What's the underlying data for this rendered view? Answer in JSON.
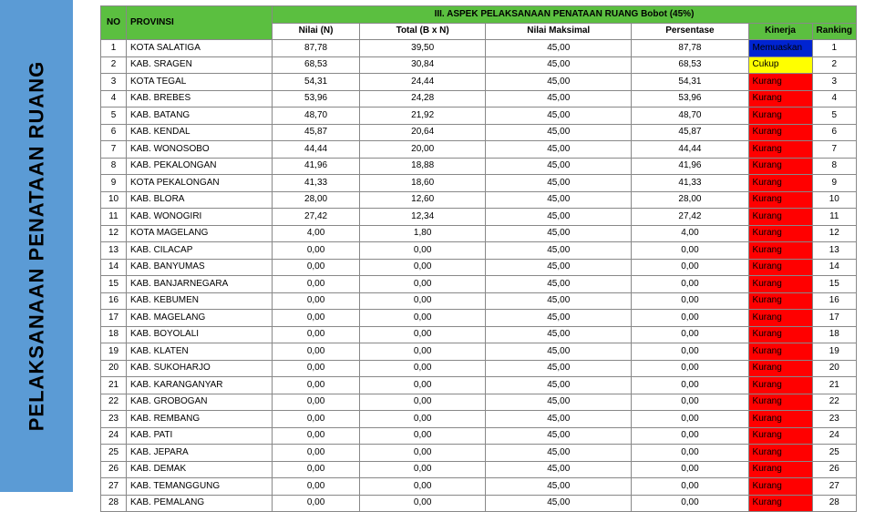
{
  "sidebar": {
    "title": "PELAKSANAAN PENATAAN RUANG"
  },
  "table": {
    "header": {
      "no": "NO",
      "provinsi": "PROVINSI",
      "group": "III. ASPEK PELAKSANAAN PENATAAN RUANG Bobot (45%)",
      "nilai": "Nilai (N)",
      "total": "Total (B x N)",
      "maks": "Nilai Maksimal",
      "persen": "Persentase",
      "kinerja": "Kinerja",
      "ranking": "Ranking"
    },
    "rows": [
      {
        "no": "1",
        "prov": "KOTA SALATIGA",
        "nilai": "87,78",
        "total": "39,50",
        "maks": "45,00",
        "persen": "87,78",
        "kin": "Memuaskan",
        "kclass": "kin-blue",
        "rank": "1"
      },
      {
        "no": "2",
        "prov": "KAB. SRAGEN",
        "nilai": "68,53",
        "total": "30,84",
        "maks": "45,00",
        "persen": "68,53",
        "kin": "Cukup",
        "kclass": "kin-yellow",
        "rank": "2"
      },
      {
        "no": "3",
        "prov": "KOTA TEGAL",
        "nilai": "54,31",
        "total": "24,44",
        "maks": "45,00",
        "persen": "54,31",
        "kin": "Kurang",
        "kclass": "kin-red",
        "rank": "3"
      },
      {
        "no": "4",
        "prov": "KAB. BREBES",
        "nilai": "53,96",
        "total": "24,28",
        "maks": "45,00",
        "persen": "53,96",
        "kin": "Kurang",
        "kclass": "kin-red",
        "rank": "4"
      },
      {
        "no": "5",
        "prov": "KAB. BATANG",
        "nilai": "48,70",
        "total": "21,92",
        "maks": "45,00",
        "persen": "48,70",
        "kin": "Kurang",
        "kclass": "kin-red",
        "rank": "5"
      },
      {
        "no": "6",
        "prov": "KAB. KENDAL",
        "nilai": "45,87",
        "total": "20,64",
        "maks": "45,00",
        "persen": "45,87",
        "kin": "Kurang",
        "kclass": "kin-red",
        "rank": "6"
      },
      {
        "no": "7",
        "prov": "KAB. WONOSOBO",
        "nilai": "44,44",
        "total": "20,00",
        "maks": "45,00",
        "persen": "44,44",
        "kin": "Kurang",
        "kclass": "kin-red",
        "rank": "7"
      },
      {
        "no": "8",
        "prov": "KAB. PEKALONGAN",
        "nilai": "41,96",
        "total": "18,88",
        "maks": "45,00",
        "persen": "41,96",
        "kin": "Kurang",
        "kclass": "kin-red",
        "rank": "8"
      },
      {
        "no": "9",
        "prov": "KOTA PEKALONGAN",
        "nilai": "41,33",
        "total": "18,60",
        "maks": "45,00",
        "persen": "41,33",
        "kin": "Kurang",
        "kclass": "kin-red",
        "rank": "9"
      },
      {
        "no": "10",
        "prov": "KAB. BLORA",
        "nilai": "28,00",
        "total": "12,60",
        "maks": "45,00",
        "persen": "28,00",
        "kin": "Kurang",
        "kclass": "kin-red",
        "rank": "10"
      },
      {
        "no": "11",
        "prov": "KAB. WONOGIRI",
        "nilai": "27,42",
        "total": "12,34",
        "maks": "45,00",
        "persen": "27,42",
        "kin": "Kurang",
        "kclass": "kin-red",
        "rank": "11"
      },
      {
        "no": "12",
        "prov": "KOTA MAGELANG",
        "nilai": "4,00",
        "total": "1,80",
        "maks": "45,00",
        "persen": "4,00",
        "kin": "Kurang",
        "kclass": "kin-red",
        "rank": "12"
      },
      {
        "no": "13",
        "prov": "KAB. CILACAP",
        "nilai": "0,00",
        "total": "0,00",
        "maks": "45,00",
        "persen": "0,00",
        "kin": "Kurang",
        "kclass": "kin-red",
        "rank": "13"
      },
      {
        "no": "14",
        "prov": "KAB. BANYUMAS",
        "nilai": "0,00",
        "total": "0,00",
        "maks": "45,00",
        "persen": "0,00",
        "kin": "Kurang",
        "kclass": "kin-red",
        "rank": "14"
      },
      {
        "no": "15",
        "prov": "KAB. BANJARNEGARA",
        "nilai": "0,00",
        "total": "0,00",
        "maks": "45,00",
        "persen": "0,00",
        "kin": "Kurang",
        "kclass": "kin-red",
        "rank": "15"
      },
      {
        "no": "16",
        "prov": "KAB. KEBUMEN",
        "nilai": "0,00",
        "total": "0,00",
        "maks": "45,00",
        "persen": "0,00",
        "kin": "Kurang",
        "kclass": "kin-red",
        "rank": "16"
      },
      {
        "no": "17",
        "prov": "KAB. MAGELANG",
        "nilai": "0,00",
        "total": "0,00",
        "maks": "45,00",
        "persen": "0,00",
        "kin": "Kurang",
        "kclass": "kin-red",
        "rank": "17"
      },
      {
        "no": "18",
        "prov": "KAB. BOYOLALI",
        "nilai": "0,00",
        "total": "0,00",
        "maks": "45,00",
        "persen": "0,00",
        "kin": "Kurang",
        "kclass": "kin-red",
        "rank": "18"
      },
      {
        "no": "19",
        "prov": "KAB. KLATEN",
        "nilai": "0,00",
        "total": "0,00",
        "maks": "45,00",
        "persen": "0,00",
        "kin": "Kurang",
        "kclass": "kin-red",
        "rank": "19"
      },
      {
        "no": "20",
        "prov": "KAB. SUKOHARJO",
        "nilai": "0,00",
        "total": "0,00",
        "maks": "45,00",
        "persen": "0,00",
        "kin": "Kurang",
        "kclass": "kin-red",
        "rank": "20"
      },
      {
        "no": "21",
        "prov": "KAB. KARANGANYAR",
        "nilai": "0,00",
        "total": "0,00",
        "maks": "45,00",
        "persen": "0,00",
        "kin": "Kurang",
        "kclass": "kin-red",
        "rank": "21"
      },
      {
        "no": "22",
        "prov": "KAB. GROBOGAN",
        "nilai": "0,00",
        "total": "0,00",
        "maks": "45,00",
        "persen": "0,00",
        "kin": "Kurang",
        "kclass": "kin-red",
        "rank": "22"
      },
      {
        "no": "23",
        "prov": "KAB. REMBANG",
        "nilai": "0,00",
        "total": "0,00",
        "maks": "45,00",
        "persen": "0,00",
        "kin": "Kurang",
        "kclass": "kin-red",
        "rank": "23"
      },
      {
        "no": "24",
        "prov": "KAB. PATI",
        "nilai": "0,00",
        "total": "0,00",
        "maks": "45,00",
        "persen": "0,00",
        "kin": "Kurang",
        "kclass": "kin-red",
        "rank": "24"
      },
      {
        "no": "25",
        "prov": "KAB. JEPARA",
        "nilai": "0,00",
        "total": "0,00",
        "maks": "45,00",
        "persen": "0,00",
        "kin": "Kurang",
        "kclass": "kin-red",
        "rank": "25"
      },
      {
        "no": "26",
        "prov": "KAB. DEMAK",
        "nilai": "0,00",
        "total": "0,00",
        "maks": "45,00",
        "persen": "0,00",
        "kin": "Kurang",
        "kclass": "kin-red",
        "rank": "26"
      },
      {
        "no": "27",
        "prov": "KAB. TEMANGGUNG",
        "nilai": "0,00",
        "total": "0,00",
        "maks": "45,00",
        "persen": "0,00",
        "kin": "Kurang",
        "kclass": "kin-red",
        "rank": "27"
      },
      {
        "no": "28",
        "prov": "KAB. PEMALANG",
        "nilai": "0,00",
        "total": "0,00",
        "maks": "45,00",
        "persen": "0,00",
        "kin": "Kurang",
        "kclass": "kin-red",
        "rank": "28"
      }
    ]
  }
}
